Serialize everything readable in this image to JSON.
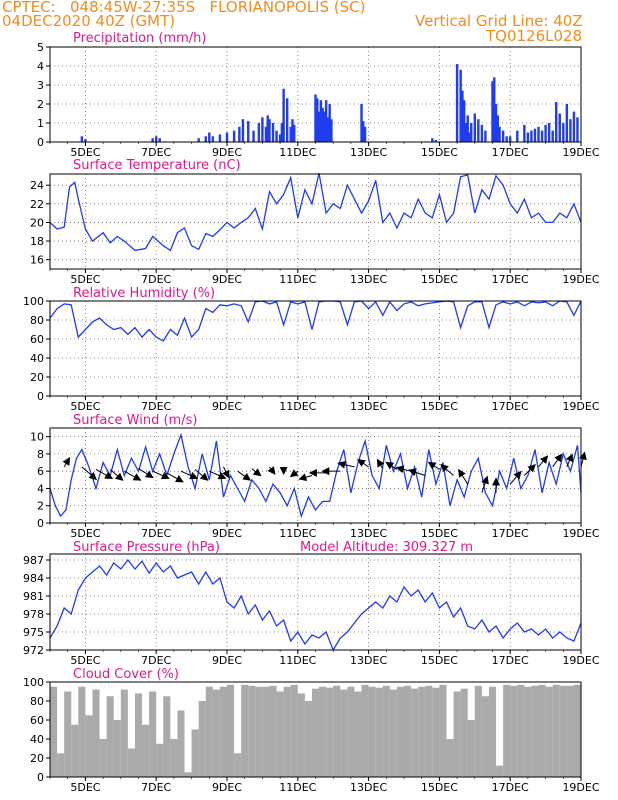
{
  "header": {
    "left_line1": "CPTEC:   048:45W-27:35S   FLORIANOPOLIS (SC)",
    "left_line2": "04DEC2020 40Z (GMT)",
    "right_line1": "Vertical Grid Line: 40Z",
    "right_line2": "TQ0126L028",
    "model_altitude": "Model Altitude: 309.327 m"
  },
  "colors": {
    "header": "#f28c1e",
    "title": "#e0188c",
    "line": "#1f3cf0",
    "bar": "#1f3cf0",
    "cloud": "#aaaaaa",
    "arrow": "#000000"
  },
  "x_ticks": [
    "5DEC",
    "7DEC",
    "9DEC",
    "11DEC",
    "13DEC",
    "15DEC",
    "17DEC",
    "19DEC"
  ],
  "chart_data": [
    {
      "id": "precip",
      "type": "bar",
      "title": "Precipitation (mm/h)",
      "ylim": [
        0,
        5
      ],
      "yticks": [
        0,
        1,
        2,
        3,
        4,
        5
      ],
      "x_range": [
        4.0,
        19.0
      ],
      "x": [
        4.9,
        5.0,
        6.9,
        7.0,
        7.1,
        8.2,
        8.4,
        8.5,
        8.6,
        8.8,
        9.0,
        9.2,
        9.35,
        9.45,
        9.6,
        9.75,
        9.9,
        10.0,
        10.1,
        10.15,
        10.2,
        10.3,
        10.4,
        10.5,
        10.55,
        10.6,
        10.7,
        10.8,
        10.85,
        10.9,
        11.5,
        11.55,
        11.6,
        11.65,
        11.7,
        11.75,
        11.8,
        11.85,
        11.9,
        11.95,
        12.8,
        12.85,
        12.9,
        14.8,
        14.9,
        15.5,
        15.6,
        15.65,
        15.7,
        15.75,
        15.8,
        15.85,
        15.9,
        16.0,
        16.1,
        16.2,
        16.3,
        16.5,
        16.55,
        16.6,
        16.65,
        16.7,
        16.8,
        16.9,
        17.0,
        17.2,
        17.4,
        17.5,
        17.6,
        17.7,
        17.8,
        17.9,
        18.0,
        18.1,
        18.2,
        18.3,
        18.4,
        18.5,
        18.6,
        18.7,
        18.8,
        18.9
      ],
      "values": [
        0.3,
        0.15,
        0.2,
        0.3,
        0.2,
        0.2,
        0.3,
        0.5,
        0.3,
        0.4,
        0.5,
        0.6,
        0.8,
        1.2,
        1.1,
        0.6,
        1.0,
        1.3,
        0.8,
        1.4,
        1.2,
        1.0,
        0.6,
        0.4,
        1.0,
        2.8,
        2.3,
        0.8,
        1.2,
        0.9,
        2.5,
        2.3,
        1.6,
        2.2,
        1.8,
        1.6,
        2.2,
        1.3,
        2.0,
        1.2,
        2.0,
        1.1,
        0.8,
        0.2,
        0.1,
        4.1,
        3.8,
        2.7,
        2.2,
        1.0,
        1.4,
        0.5,
        1.0,
        1.5,
        1.2,
        0.9,
        0.6,
        3.2,
        3.4,
        2.0,
        1.4,
        0.8,
        0.6,
        0.3,
        0.3,
        0.6,
        0.9,
        0.5,
        0.6,
        0.7,
        0.8,
        0.6,
        0.9,
        1.0,
        0.6,
        2.1,
        1.5,
        1.0,
        2.0,
        1.2,
        1.6,
        1.3
      ]
    },
    {
      "id": "temp",
      "type": "line",
      "title": "Surface Temperature (nC)",
      "ylim": [
        15,
        25.2
      ],
      "yticks": [
        16,
        18,
        20,
        22,
        24
      ],
      "x_range": [
        4.0,
        19.0
      ],
      "x": [
        4.0,
        4.2,
        4.4,
        4.55,
        4.7,
        4.8,
        5.0,
        5.2,
        5.5,
        5.7,
        5.9,
        6.1,
        6.4,
        6.7,
        6.9,
        7.2,
        7.4,
        7.6,
        7.8,
        8.0,
        8.2,
        8.4,
        8.6,
        8.8,
        9.0,
        9.2,
        9.4,
        9.6,
        9.8,
        10.0,
        10.2,
        10.4,
        10.6,
        10.8,
        11.0,
        11.2,
        11.4,
        11.6,
        11.8,
        12.0,
        12.2,
        12.4,
        12.6,
        12.8,
        13.0,
        13.2,
        13.4,
        13.6,
        13.8,
        14.0,
        14.2,
        14.4,
        14.6,
        14.8,
        15.0,
        15.2,
        15.4,
        15.6,
        15.8,
        16.0,
        16.2,
        16.4,
        16.6,
        16.8,
        17.0,
        17.2,
        17.4,
        17.6,
        17.8,
        18.0,
        18.2,
        18.4,
        18.6,
        18.8,
        19.0
      ],
      "values": [
        20,
        19.3,
        19.5,
        23.8,
        24.3,
        22.5,
        19.3,
        18.0,
        18.9,
        17.8,
        18.5,
        18.0,
        17.0,
        17.2,
        18.5,
        17.5,
        17.0,
        18.9,
        19.4,
        17.5,
        17.1,
        18.8,
        18.5,
        19.2,
        20.0,
        19.4,
        20.0,
        20.5,
        21.5,
        19.3,
        23.3,
        22.0,
        23.0,
        24.8,
        20.5,
        23.5,
        22.0,
        25.3,
        21.0,
        22.0,
        21.5,
        24.0,
        22.5,
        21.0,
        22.3,
        24.5,
        20.0,
        21.0,
        19.4,
        21.0,
        20.5,
        22.5,
        21.0,
        20.5,
        23.0,
        20.0,
        21.0,
        24.9,
        25.1,
        21.0,
        23.5,
        22.5,
        25.0,
        24.0,
        22.0,
        21.0,
        22.5,
        20.5,
        21.0,
        20.0,
        20.0,
        21.0,
        20.5,
        22.0,
        20.0
      ]
    },
    {
      "id": "rh",
      "type": "line",
      "title": "Relative Humidity (%)",
      "ylim": [
        0,
        100
      ],
      "yticks": [
        0,
        20,
        40,
        60,
        80,
        100
      ],
      "x_range": [
        4.0,
        19.0
      ],
      "x": [
        4.0,
        4.2,
        4.4,
        4.6,
        4.8,
        5.0,
        5.2,
        5.4,
        5.6,
        5.8,
        6.0,
        6.2,
        6.4,
        6.6,
        6.8,
        7.0,
        7.2,
        7.4,
        7.6,
        7.8,
        8.0,
        8.2,
        8.4,
        8.6,
        8.8,
        9.0,
        9.2,
        9.4,
        9.6,
        9.8,
        10.0,
        10.2,
        10.4,
        10.6,
        10.8,
        11.0,
        11.2,
        11.4,
        11.6,
        11.8,
        12.0,
        12.2,
        12.4,
        12.6,
        12.8,
        13.0,
        13.2,
        13.4,
        13.6,
        13.8,
        14.0,
        14.2,
        14.4,
        14.6,
        14.8,
        15.0,
        15.2,
        15.4,
        15.6,
        15.8,
        16.0,
        16.2,
        16.4,
        16.6,
        16.8,
        17.0,
        17.2,
        17.4,
        17.6,
        17.8,
        18.0,
        18.2,
        18.4,
        18.6,
        18.8,
        19.0
      ],
      "values": [
        82,
        92,
        97,
        96,
        62,
        70,
        78,
        82,
        75,
        70,
        72,
        65,
        72,
        62,
        70,
        62,
        58,
        70,
        64,
        82,
        62,
        70,
        92,
        88,
        96,
        95,
        97,
        95,
        78,
        99,
        100,
        97,
        99,
        75,
        99,
        97,
        99,
        70,
        99,
        100,
        100,
        99,
        75,
        99,
        100,
        92,
        99,
        85,
        99,
        90,
        97,
        99,
        95,
        97,
        98,
        99,
        100,
        99,
        72,
        95,
        99,
        99,
        72,
        96,
        99,
        97,
        99,
        95,
        99,
        98,
        99,
        95,
        100,
        99,
        85,
        100
      ]
    },
    {
      "id": "wind",
      "type": "line",
      "title": "Surface Wind (m/s)",
      "ylim": [
        0,
        11
      ],
      "yticks": [
        0,
        2,
        4,
        6,
        8,
        10
      ],
      "x_range": [
        4.0,
        19.0
      ],
      "x": [
        4.0,
        4.15,
        4.3,
        4.45,
        4.6,
        4.75,
        4.9,
        5.1,
        5.3,
        5.5,
        5.7,
        5.9,
        6.1,
        6.3,
        6.5,
        6.7,
        6.9,
        7.1,
        7.3,
        7.5,
        7.7,
        7.9,
        8.1,
        8.3,
        8.5,
        8.7,
        8.9,
        9.1,
        9.3,
        9.5,
        9.7,
        9.9,
        10.1,
        10.3,
        10.5,
        10.7,
        10.9,
        11.1,
        11.3,
        11.5,
        11.7,
        11.9,
        12.1,
        12.3,
        12.5,
        12.7,
        12.9,
        13.1,
        13.3,
        13.5,
        13.7,
        13.9,
        14.1,
        14.3,
        14.5,
        14.7,
        14.9,
        15.1,
        15.3,
        15.5,
        15.7,
        15.9,
        16.1,
        16.3,
        16.5,
        16.7,
        16.9,
        17.1,
        17.3,
        17.5,
        17.7,
        17.9,
        18.1,
        18.3,
        18.5,
        18.7,
        18.9,
        19.0
      ],
      "values": [
        4,
        2,
        0.8,
        1.5,
        5,
        7.5,
        8.5,
        6.5,
        4,
        7,
        5.5,
        8.5,
        5.5,
        7.5,
        6,
        8.8,
        6,
        8,
        5.5,
        8,
        10.2,
        6.5,
        4,
        8,
        5,
        9.5,
        3,
        5.5,
        4,
        2.5,
        5,
        4,
        2.5,
        4.5,
        3.5,
        2,
        4,
        0.8,
        3,
        1.5,
        2.5,
        2.5,
        6,
        8.5,
        3.5,
        7,
        9.5,
        5.5,
        4,
        9,
        6,
        8,
        4,
        6.5,
        3,
        8.5,
        4.5,
        7,
        2,
        5,
        3,
        6,
        7.5,
        3.5,
        2,
        6,
        4,
        7.5,
        4,
        5.5,
        8.5,
        3.5,
        7,
        4.5,
        8,
        6,
        9,
        3.5
      ]
    },
    {
      "id": "pres",
      "type": "line",
      "title": "Surface Pressure (hPa)",
      "ylim": [
        972,
        988
      ],
      "yticks": [
        972,
        975,
        978,
        981,
        984,
        987
      ],
      "x_range": [
        4.0,
        19.0
      ],
      "x": [
        4.0,
        4.2,
        4.4,
        4.6,
        4.8,
        5.0,
        5.2,
        5.4,
        5.6,
        5.8,
        6.0,
        6.2,
        6.4,
        6.6,
        6.8,
        7.0,
        7.2,
        7.4,
        7.6,
        7.8,
        8.0,
        8.2,
        8.4,
        8.6,
        8.8,
        9.0,
        9.2,
        9.4,
        9.6,
        9.8,
        10.0,
        10.2,
        10.4,
        10.6,
        10.8,
        11.0,
        11.2,
        11.4,
        11.6,
        11.8,
        12.0,
        12.2,
        12.4,
        12.6,
        12.8,
        13.0,
        13.2,
        13.4,
        13.6,
        13.8,
        14.0,
        14.2,
        14.4,
        14.6,
        14.8,
        15.0,
        15.2,
        15.4,
        15.6,
        15.8,
        16.0,
        16.2,
        16.4,
        16.6,
        16.8,
        17.0,
        17.2,
        17.4,
        17.6,
        17.8,
        18.0,
        18.2,
        18.4,
        18.6,
        18.8,
        19.0
      ],
      "values": [
        974,
        976,
        979,
        978,
        982,
        984,
        985,
        986,
        984.5,
        986.5,
        985.5,
        987,
        985.5,
        986.8,
        984.8,
        986.5,
        985,
        986,
        984,
        984.5,
        985,
        983,
        985,
        983,
        984,
        980,
        979,
        981,
        978,
        979.5,
        977,
        978.5,
        976,
        977,
        973.5,
        975,
        973,
        974.5,
        974,
        975,
        972,
        974,
        975,
        976.5,
        978,
        979,
        980,
        979,
        981,
        980,
        982.5,
        981,
        982,
        980,
        981.5,
        979,
        980,
        977.5,
        979,
        976,
        975.5,
        977,
        975,
        976,
        974,
        975.5,
        976.5,
        975,
        975.5,
        974.5,
        975.5,
        974,
        975,
        974,
        973.5,
        976.5
      ]
    },
    {
      "id": "cloud",
      "type": "area",
      "title": "Cloud Cover (%)",
      "ylim": [
        0,
        100
      ],
      "yticks": [
        0,
        20,
        40,
        60,
        80,
        100
      ],
      "x_range": [
        4.0,
        19.0
      ],
      "x": [
        4.0,
        4.2,
        4.4,
        4.6,
        4.8,
        5.0,
        5.2,
        5.4,
        5.6,
        5.8,
        6.0,
        6.2,
        6.4,
        6.6,
        6.8,
        7.0,
        7.2,
        7.4,
        7.6,
        7.8,
        8.0,
        8.2,
        8.4,
        8.6,
        8.8,
        9.0,
        9.2,
        9.4,
        9.6,
        9.8,
        10.0,
        10.2,
        10.4,
        10.6,
        10.8,
        11.0,
        11.2,
        11.4,
        11.6,
        11.8,
        12.0,
        12.2,
        12.4,
        12.6,
        12.8,
        13.0,
        13.2,
        13.4,
        13.6,
        13.8,
        14.0,
        14.2,
        14.4,
        14.6,
        14.8,
        15.0,
        15.2,
        15.4,
        15.6,
        15.8,
        16.0,
        16.2,
        16.4,
        16.6,
        16.8,
        17.0,
        17.2,
        17.4,
        17.6,
        17.8,
        18.0,
        18.2,
        18.4,
        18.6,
        18.8,
        19.0
      ],
      "values": [
        95,
        25,
        90,
        55,
        95,
        65,
        92,
        40,
        85,
        60,
        92,
        30,
        88,
        55,
        90,
        35,
        85,
        40,
        70,
        5,
        50,
        80,
        95,
        92,
        95,
        97,
        25,
        97,
        96,
        95,
        95,
        96,
        90,
        95,
        97,
        88,
        80,
        93,
        95,
        94,
        96,
        92,
        95,
        90,
        97,
        95,
        94,
        96,
        92,
        95,
        96,
        93,
        95,
        96,
        94,
        97,
        40,
        90,
        93,
        60,
        96,
        85,
        95,
        12,
        97,
        96,
        97,
        95,
        96,
        97,
        95,
        97,
        96,
        96,
        97,
        95
      ]
    },
    {
      "id": "wind-vectors",
      "type": "vector",
      "title": "Surface Wind (m/s)",
      "x": [
        4.4,
        4.9,
        5.3,
        5.7,
        6.1,
        6.5,
        6.9,
        7.3,
        7.7,
        8.1,
        8.5,
        8.9,
        9.3,
        9.7,
        10.2,
        10.6,
        11.0,
        11.4,
        11.8,
        12.2,
        12.6,
        13.0,
        13.4,
        13.8,
        14.2,
        14.6,
        15.0,
        15.4,
        15.8,
        16.2,
        16.6,
        17.0,
        17.4,
        17.8,
        18.2,
        18.6,
        19.0
      ],
      "y": [
        6.5,
        6.5,
        6.2,
        6.2,
        6.0,
        6.3,
        6.0,
        5.8,
        6.0,
        6.2,
        6.0,
        6.5,
        6.0,
        6.3,
        6.5,
        6.5,
        6.0,
        5.5,
        5.8,
        6.0,
        6.5,
        6.5,
        6.3,
        6.2,
        6.0,
        5.5,
        6.2,
        5.5,
        4.5,
        3.5,
        3.5,
        4.5,
        5.5,
        6.5,
        6.5,
        6.5,
        6.5
      ],
      "u": [
        0.3,
        0.8,
        0.9,
        0.7,
        0.9,
        0.8,
        0.9,
        0.9,
        0.9,
        0.7,
        0.9,
        0.3,
        0.7,
        0.5,
        0.3,
        0.0,
        -0.4,
        -0.7,
        -0.9,
        -1.0,
        -0.9,
        -0.6,
        -0.3,
        -0.6,
        -0.8,
        -0.9,
        -0.6,
        -0.7,
        -0.5,
        0.3,
        0.0,
        0.6,
        0.6,
        0.5,
        0.5,
        0.3,
        0.2
      ],
      "v": [
        0.5,
        -0.7,
        -0.5,
        -0.6,
        -0.5,
        -0.5,
        -0.4,
        -0.5,
        -0.4,
        -0.6,
        -0.4,
        -0.6,
        -0.5,
        -0.4,
        -0.4,
        -0.4,
        -0.3,
        -0.2,
        0.0,
        0.0,
        0.2,
        0.4,
        0.5,
        0.4,
        0.2,
        0.3,
        0.4,
        0.6,
        0.8,
        0.9,
        0.8,
        0.7,
        0.6,
        0.6,
        0.7,
        0.7,
        0.8
      ]
    }
  ]
}
